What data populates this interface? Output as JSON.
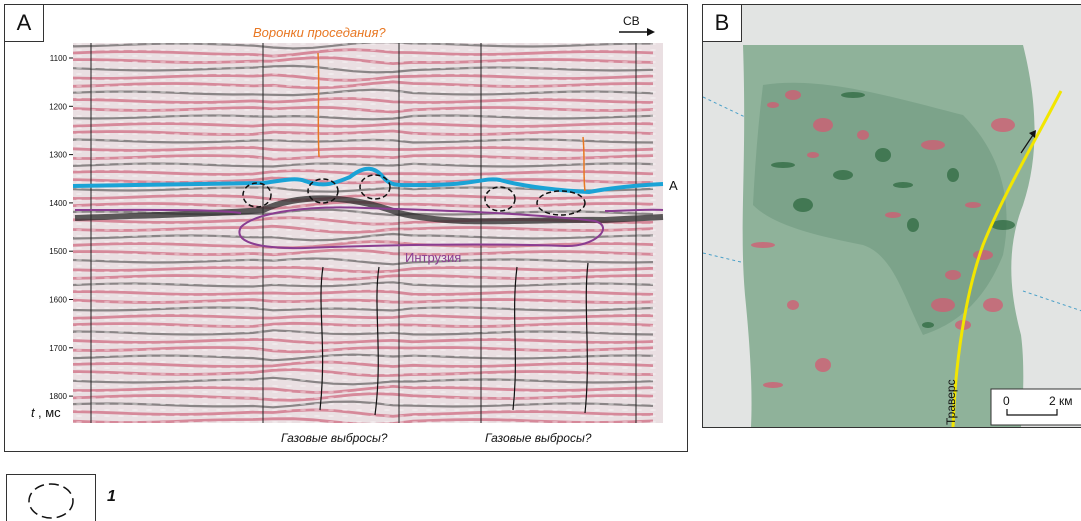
{
  "panel_a": {
    "letter": "A",
    "top_annotation": "Воронки проседания?",
    "direction": "СВ",
    "horizon_label": "А",
    "intrusion_label": "Интрузия",
    "bottom_labels": [
      "Газовые выбросы?",
      "Газовые выбросы?"
    ],
    "axis_unit_var": "t",
    "axis_unit_rest": ", мс",
    "y_ticks": [
      "1100",
      "1200",
      "1300",
      "1400",
      "1500",
      "1600",
      "1700",
      "1800"
    ]
  },
  "panel_b": {
    "letter": "B",
    "traverse_label": "Траверс",
    "scale_zero": "0",
    "scale_end": "2 км"
  },
  "legend": {
    "label": "1"
  },
  "colors": {
    "horizon": "#1aa3d6",
    "intrusion": "#8a3d91",
    "annotation": "#e87722",
    "traverse": "#f2e600",
    "map_green": "#8fb29a",
    "seismic_red": "#c8506a",
    "seismic_dark": "#3a3a3a"
  }
}
